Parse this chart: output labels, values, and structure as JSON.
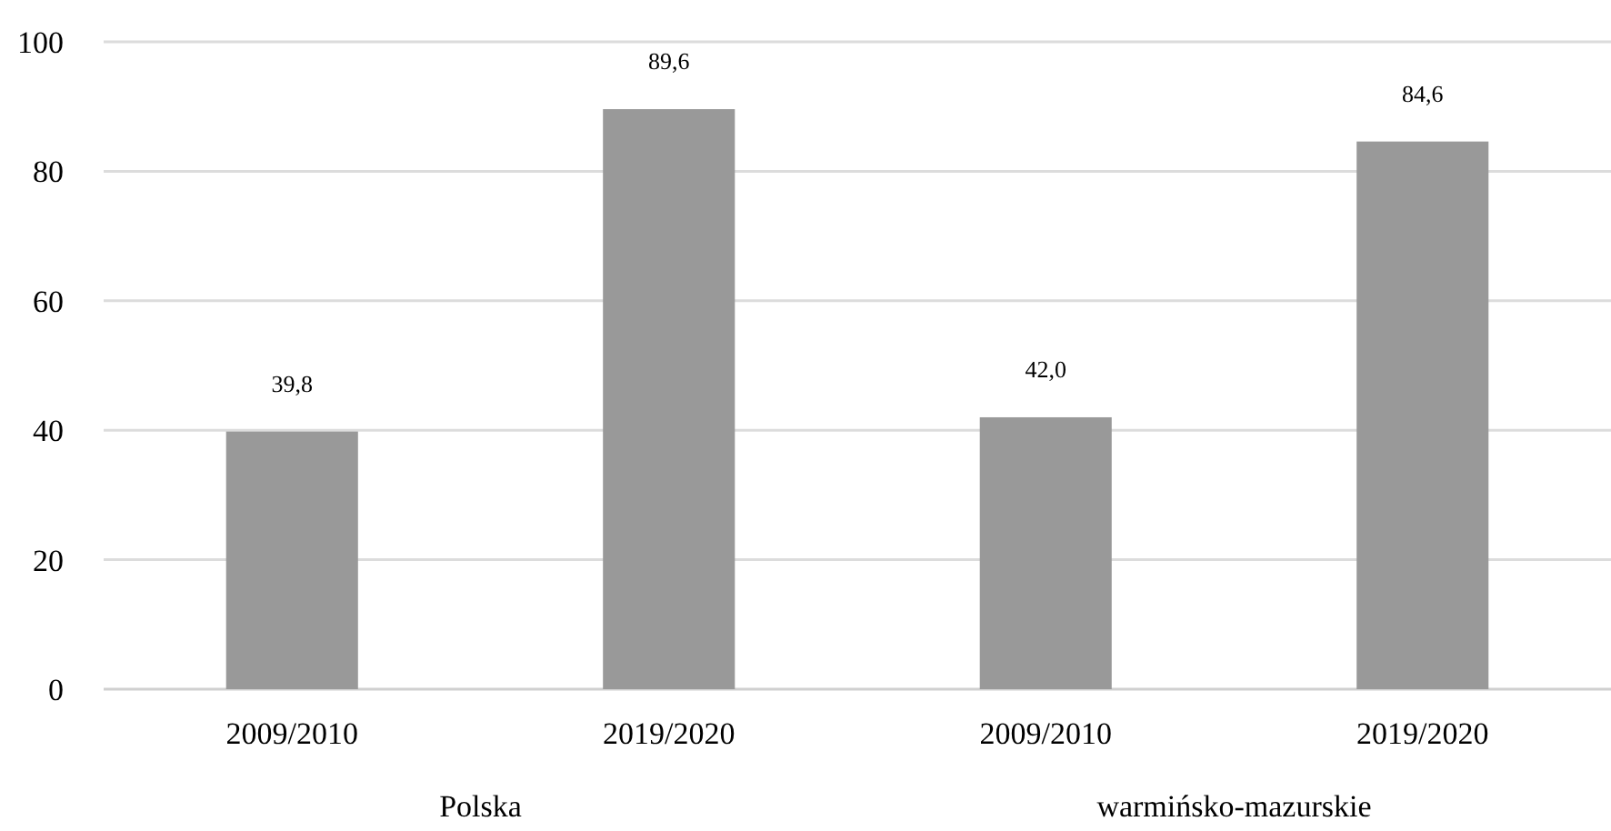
{
  "chart_data": {
    "type": "bar",
    "categories": [
      "2009/2010",
      "2019/2020",
      "2009/2010",
      "2019/2020"
    ],
    "values": [
      39.8,
      89.6,
      42.0,
      84.6
    ],
    "value_labels": [
      "39,8",
      "89,6",
      "42,0",
      "84,6"
    ],
    "color": "#999999",
    "ylim": [
      0,
      100
    ],
    "yticks": [
      0,
      20,
      40,
      60,
      80,
      100
    ],
    "grid": "y",
    "annotations": [
      "Polska",
      "warmińsko-mazurskie"
    ]
  }
}
